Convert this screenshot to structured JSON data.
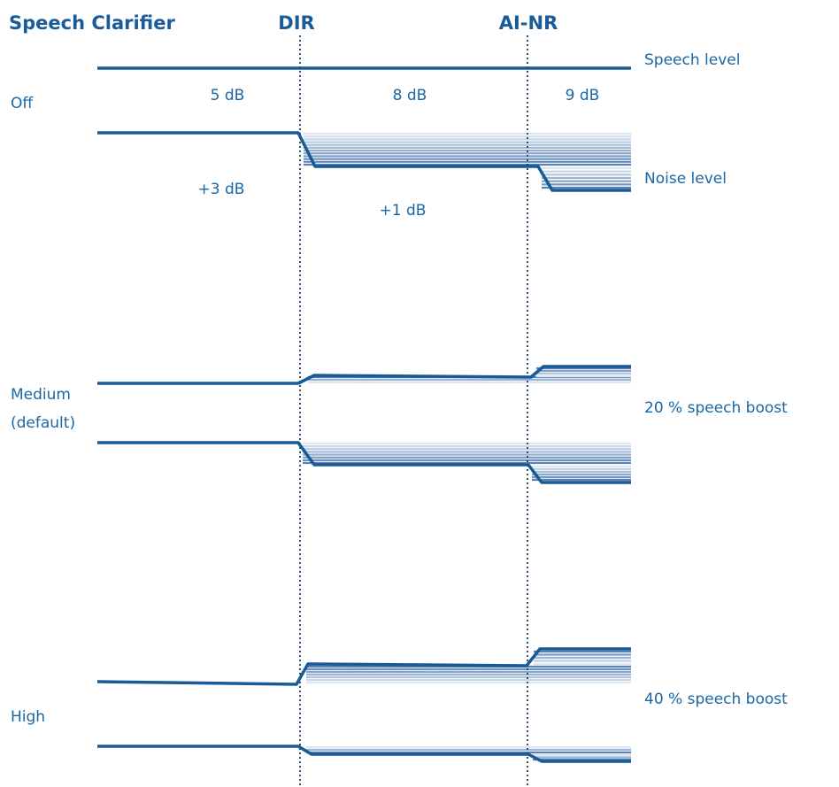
{
  "header": {
    "title": "Speech Clarifier",
    "stage_1": "DIR",
    "stage_2": "AI-NR"
  },
  "levels": {
    "speech": "Speech level",
    "noise": "Noise level"
  },
  "off": {
    "label": "Off",
    "snr": [
      "5 dB",
      "8 dB",
      "9 dB"
    ],
    "gains": [
      "+3 dB",
      "+1 dB"
    ]
  },
  "medium": {
    "label": "Medium",
    "sublabel": "(default)",
    "boost": "20 % speech boost"
  },
  "high": {
    "label": "High",
    "boost": "40 % speech boost"
  }
}
